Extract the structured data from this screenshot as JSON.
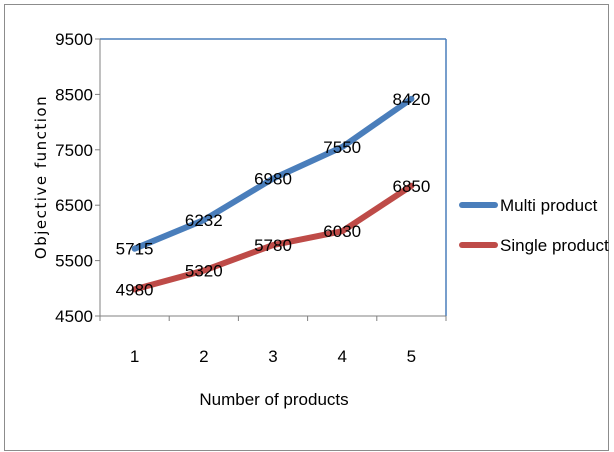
{
  "chart_data": {
    "type": "line",
    "title": "",
    "xlabel": "Number of products",
    "ylabel": "Objective function",
    "categories": [
      "1",
      "2",
      "3",
      "4",
      "5"
    ],
    "ylim": [
      4500,
      9500
    ],
    "yticks": [
      4500,
      5500,
      6500,
      7500,
      8500,
      9500
    ],
    "yticks_text": [
      "4500",
      "5500",
      "6500",
      "7500",
      "8500",
      "9500"
    ],
    "grid": false,
    "legend_position": "right",
    "series": [
      {
        "name": "Multi product",
        "color": "#4a7ebb",
        "values": [
          5715,
          6232,
          6980,
          7550,
          8420
        ],
        "labels": [
          "5715",
          "6232",
          "6980",
          "7550",
          "8420"
        ]
      },
      {
        "name": "Single product",
        "color": "#be4b48",
        "values": [
          4980,
          5320,
          5780,
          6030,
          6850
        ],
        "labels": [
          "4980",
          "5320",
          "5780",
          "6030",
          "6850"
        ]
      }
    ]
  }
}
